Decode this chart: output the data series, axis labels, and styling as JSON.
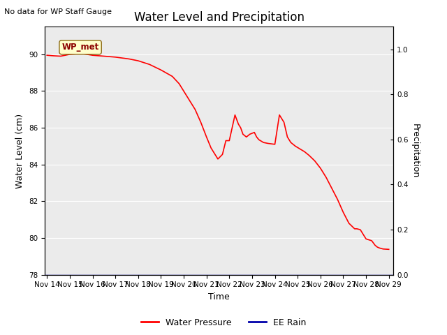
{
  "title": "Water Level and Precipitation",
  "top_left_text": "No data for WP Staff Gauge",
  "xlabel": "Time",
  "ylabel_left": "Water Level (cm)",
  "ylabel_right": "Precipitation",
  "ylim_left": [
    78,
    91.5
  ],
  "ylim_right": [
    0.0,
    1.1
  ],
  "yticks_left": [
    78,
    80,
    82,
    84,
    86,
    88,
    90
  ],
  "yticks_right": [
    0.0,
    0.2,
    0.4,
    0.6,
    0.8,
    1.0
  ],
  "background_color": "#EBEBEB",
  "line_color_wp": "#FF0000",
  "line_color_rain": "#0000AA",
  "legend_entries": [
    "Water Pressure",
    "EE Rain"
  ],
  "annotation_text": "WP_met",
  "wp_data": [
    [
      0.0,
      89.95
    ],
    [
      0.3,
      89.92
    ],
    [
      0.6,
      89.9
    ],
    [
      1.0,
      90.0
    ],
    [
      1.5,
      90.05
    ],
    [
      2.0,
      89.95
    ],
    [
      2.5,
      89.9
    ],
    [
      3.0,
      89.85
    ],
    [
      3.3,
      89.8
    ],
    [
      3.6,
      89.75
    ],
    [
      4.0,
      89.65
    ],
    [
      4.5,
      89.45
    ],
    [
      5.0,
      89.15
    ],
    [
      5.5,
      88.8
    ],
    [
      5.8,
      88.4
    ],
    [
      6.0,
      88.0
    ],
    [
      6.25,
      87.5
    ],
    [
      6.5,
      87.0
    ],
    [
      6.75,
      86.3
    ],
    [
      7.0,
      85.5
    ],
    [
      7.2,
      84.9
    ],
    [
      7.4,
      84.5
    ],
    [
      7.5,
      84.3
    ],
    [
      7.7,
      84.55
    ],
    [
      7.85,
      85.3
    ],
    [
      8.0,
      85.3
    ],
    [
      8.25,
      86.7
    ],
    [
      8.4,
      86.2
    ],
    [
      8.5,
      86.0
    ],
    [
      8.6,
      85.65
    ],
    [
      8.75,
      85.5
    ],
    [
      8.9,
      85.65
    ],
    [
      9.0,
      85.7
    ],
    [
      9.1,
      85.75
    ],
    [
      9.2,
      85.5
    ],
    [
      9.3,
      85.35
    ],
    [
      9.5,
      85.2
    ],
    [
      9.7,
      85.15
    ],
    [
      10.0,
      85.1
    ],
    [
      10.2,
      86.7
    ],
    [
      10.4,
      86.3
    ],
    [
      10.55,
      85.5
    ],
    [
      10.7,
      85.2
    ],
    [
      10.9,
      85.0
    ],
    [
      11.1,
      84.85
    ],
    [
      11.3,
      84.7
    ],
    [
      11.5,
      84.5
    ],
    [
      11.75,
      84.2
    ],
    [
      12.0,
      83.8
    ],
    [
      12.25,
      83.3
    ],
    [
      12.5,
      82.7
    ],
    [
      12.75,
      82.1
    ],
    [
      13.0,
      81.4
    ],
    [
      13.25,
      80.8
    ],
    [
      13.5,
      80.5
    ],
    [
      13.6,
      80.5
    ],
    [
      13.75,
      80.45
    ],
    [
      14.0,
      79.95
    ],
    [
      14.25,
      79.85
    ],
    [
      14.4,
      79.6
    ],
    [
      14.5,
      79.5
    ],
    [
      14.6,
      79.45
    ],
    [
      14.75,
      79.4
    ],
    [
      15.0,
      79.38
    ]
  ],
  "x_tick_labels": [
    "Nov 14",
    "Nov 15",
    "Nov 16",
    "Nov 17",
    "Nov 18",
    "Nov 19",
    "Nov 20",
    "Nov 21",
    "Nov 22",
    "Nov 23",
    "Nov 24",
    "Nov 25",
    "Nov 26",
    "Nov 27",
    "Nov 28",
    "Nov 29"
  ],
  "x_tick_positions": [
    0,
    1,
    2,
    3,
    4,
    5,
    6,
    7,
    8,
    9,
    10,
    11,
    12,
    13,
    14,
    15
  ],
  "xlim": [
    -0.1,
    15.2
  ],
  "title_fontsize": 12,
  "axis_fontsize": 9,
  "tick_fontsize": 7.5
}
